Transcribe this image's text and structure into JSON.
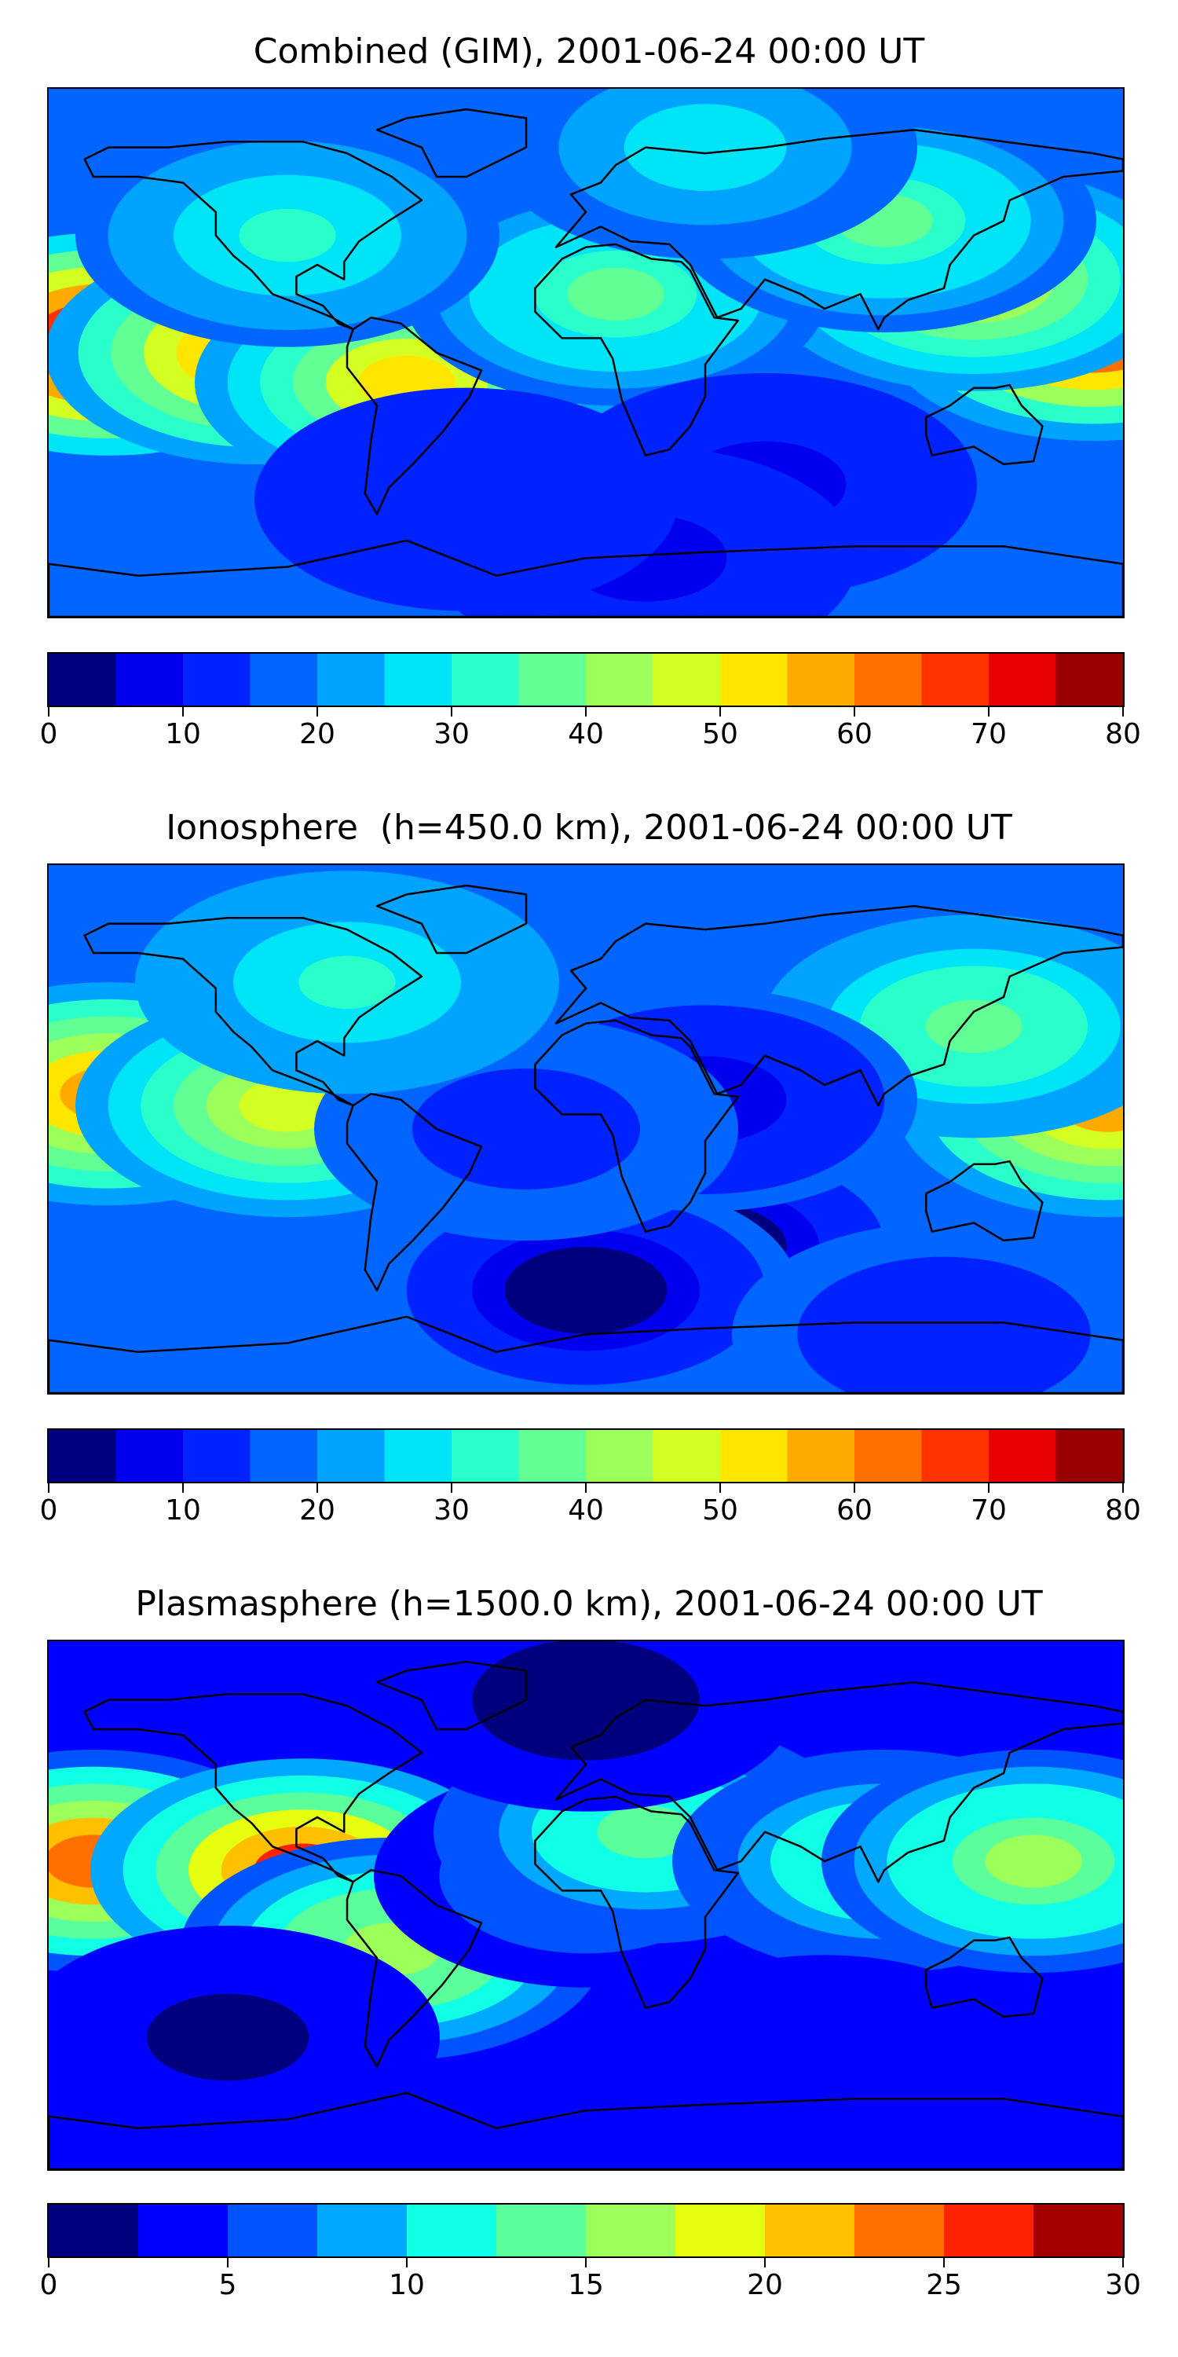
{
  "colors": {
    "jet": [
      "#00007f",
      "#0000ee",
      "#0022ff",
      "#0066ff",
      "#00a4ff",
      "#00e4f7",
      "#2affcc",
      "#62ff94",
      "#9cff5a",
      "#d4ff23",
      "#ffe600",
      "#ffaa00",
      "#ff7000",
      "#ff3300",
      "#e80000",
      "#990000"
    ],
    "jet12": [
      "#00007f",
      "#0000ff",
      "#0054ff",
      "#00a8ff",
      "#10ffe6",
      "#5aff9c",
      "#9cff5a",
      "#e6ff10",
      "#ffc000",
      "#ff7000",
      "#ff2200",
      "#a40000"
    ],
    "coastline": "#000000"
  },
  "chart_data": [
    {
      "type": "heatmap",
      "title": "Combined (GIM), 2001-06-24 00:00 UT",
      "colorbar": {
        "levels": [
          0,
          5,
          10,
          15,
          20,
          25,
          30,
          35,
          40,
          45,
          50,
          55,
          60,
          65,
          70,
          75,
          80
        ],
        "ticks": [
          0,
          10,
          20,
          30,
          40,
          50,
          60,
          70,
          80
        ],
        "range": [
          0,
          80
        ]
      },
      "background_value": 15,
      "features": [
        {
          "lon": -160,
          "lat": 3,
          "value": 76
        },
        {
          "lon": -110,
          "lat": 0,
          "value": 62
        },
        {
          "lon": -60,
          "lat": -10,
          "value": 52
        },
        {
          "lon": 170,
          "lat": 8,
          "value": 70
        },
        {
          "lon": 130,
          "lat": 25,
          "value": 45
        },
        {
          "lon": 10,
          "lat": 20,
          "value": 35
        },
        {
          "lon": 100,
          "lat": 45,
          "value": 35
        },
        {
          "lon": 60,
          "lat": -45,
          "value": 8
        },
        {
          "lon": 20,
          "lat": -70,
          "value": 8
        },
        {
          "lon": -40,
          "lat": -50,
          "value": 12
        },
        {
          "lon": -100,
          "lat": 40,
          "value": 30
        },
        {
          "lon": 40,
          "lat": 70,
          "value": 28
        }
      ]
    },
    {
      "type": "heatmap",
      "title": "Ionosphere  (h=450.0 km), 2001-06-24 00:00 UT",
      "colorbar": {
        "levels": [
          0,
          5,
          10,
          15,
          20,
          25,
          30,
          35,
          40,
          45,
          50,
          55,
          60,
          65,
          70,
          75,
          80
        ],
        "ticks": [
          0,
          10,
          20,
          30,
          40,
          50,
          60,
          70,
          80
        ],
        "range": [
          0,
          80
        ]
      },
      "background_value": 18,
      "features": [
        {
          "lon": -160,
          "lat": 12,
          "value": 57
        },
        {
          "lon": -100,
          "lat": 8,
          "value": 45
        },
        {
          "lon": 175,
          "lat": 8,
          "value": 55
        },
        {
          "lon": 130,
          "lat": 35,
          "value": 38
        },
        {
          "lon": 40,
          "lat": -40,
          "value": 2
        },
        {
          "lon": 0,
          "lat": -55,
          "value": 2
        },
        {
          "lon": 40,
          "lat": 10,
          "value": 8
        },
        {
          "lon": -20,
          "lat": 0,
          "value": 12
        },
        {
          "lon": -80,
          "lat": 50,
          "value": 30
        },
        {
          "lon": 120,
          "lat": -70,
          "value": 10
        }
      ]
    },
    {
      "type": "heatmap",
      "title": "Plasmasphere (h=1500.0 km), 2001-06-24 00:00 UT",
      "colorbar": {
        "levels": [
          0,
          2.5,
          5,
          7.5,
          10,
          12.5,
          15,
          17.5,
          20,
          22.5,
          25,
          27.5,
          30
        ],
        "ticks": [
          0,
          5,
          10,
          15,
          20,
          25,
          30
        ],
        "range": [
          0,
          30
        ]
      },
      "background_value": 4,
      "features": [
        {
          "lon": -165,
          "lat": 15,
          "value": 24
        },
        {
          "lon": -95,
          "lat": 12,
          "value": 25
        },
        {
          "lon": -65,
          "lat": -15,
          "value": 17
        },
        {
          "lon": 0,
          "lat": 10,
          "value": 6
        },
        {
          "lon": 20,
          "lat": 25,
          "value": 14
        },
        {
          "lon": 100,
          "lat": 15,
          "value": 13
        },
        {
          "lon": 150,
          "lat": 15,
          "value": 16
        },
        {
          "lon": 0,
          "lat": 70,
          "value": 1
        },
        {
          "lon": -120,
          "lat": -45,
          "value": 2
        },
        {
          "lon": 80,
          "lat": -55,
          "value": 3
        }
      ]
    }
  ]
}
